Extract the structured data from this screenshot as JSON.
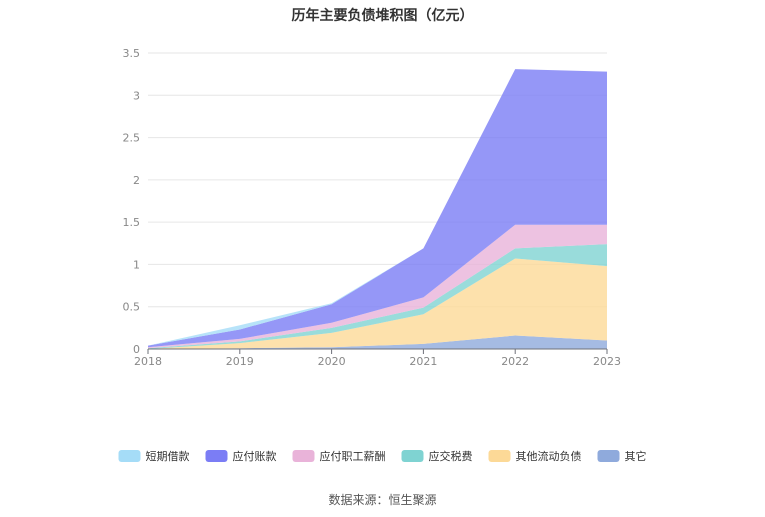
{
  "chart_data": {
    "type": "area",
    "title": "历年主要负债堆积图（亿元）",
    "categories": [
      "2018",
      "2019",
      "2020",
      "2021",
      "2022",
      "2023"
    ],
    "ylim": [
      0,
      3.5
    ],
    "yticks": [
      "0",
      "0.5",
      "1",
      "1.5",
      "2",
      "2.5",
      "3",
      "3.5"
    ],
    "stacked": true,
    "grid": true,
    "legend_position": "bottom",
    "series": [
      {
        "name": "其它",
        "color": "#8faadc",
        "values": [
          0.0,
          0.01,
          0.02,
          0.06,
          0.16,
          0.1
        ]
      },
      {
        "name": "其他流动负债",
        "color": "#fcd997",
        "values": [
          0.0,
          0.06,
          0.17,
          0.35,
          0.91,
          0.88
        ]
      },
      {
        "name": "应交税费",
        "color": "#7fd3d2",
        "values": [
          0.01,
          0.02,
          0.06,
          0.08,
          0.12,
          0.26
        ]
      },
      {
        "name": "应付职工薪酬",
        "color": "#e9b3d9",
        "values": [
          0.01,
          0.03,
          0.06,
          0.12,
          0.28,
          0.23
        ]
      },
      {
        "name": "应付账款",
        "color": "#7b7df5",
        "values": [
          0.02,
          0.11,
          0.22,
          0.58,
          1.84,
          1.81
        ]
      },
      {
        "name": "短期借款",
        "color": "#a5dcf7",
        "values": [
          0.0,
          0.05,
          0.01,
          0.0,
          0.0,
          0.0
        ]
      }
    ],
    "legend_order": [
      "短期借款",
      "应付账款",
      "应付职工薪酬",
      "应交税费",
      "其他流动负债",
      "其它"
    ],
    "source": "数据来源：恒生聚源"
  }
}
